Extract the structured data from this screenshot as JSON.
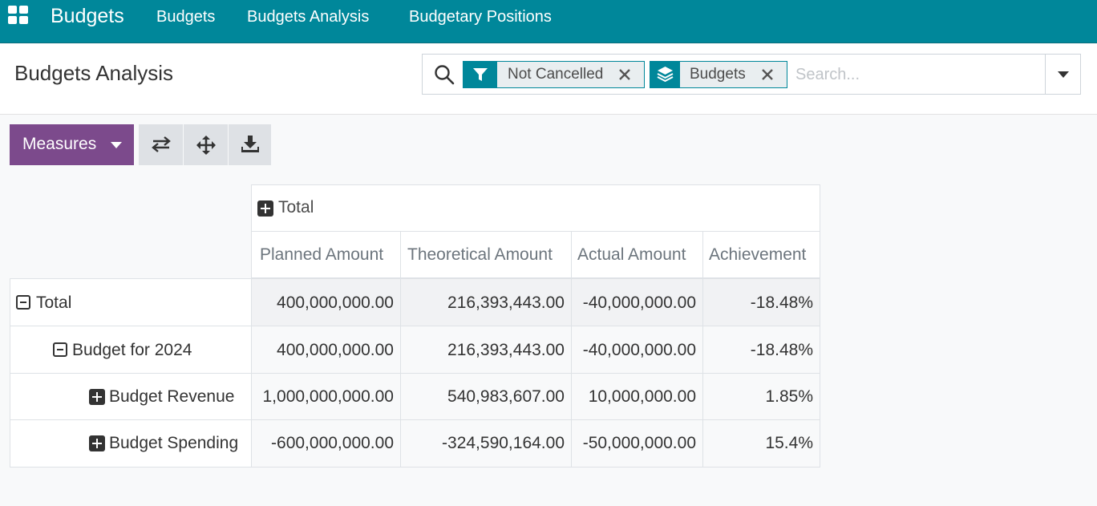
{
  "navbar": {
    "brand": "Budgets",
    "menu": [
      "Budgets",
      "Budgets Analysis",
      "Budgetary Positions"
    ]
  },
  "control_panel": {
    "title": "Budgets Analysis",
    "search": {
      "facets": [
        {
          "icon": "filter-icon",
          "label": "Not Cancelled"
        },
        {
          "icon": "layers-icon",
          "label": "Budgets"
        }
      ],
      "placeholder": "Search..."
    }
  },
  "toolbar": {
    "measures_label": "Measures",
    "buttons": [
      "flip-axis-icon",
      "expand-all-icon",
      "download-icon"
    ]
  },
  "pivot": {
    "column_group": "Total",
    "measures": [
      "Planned Amount",
      "Theoretical Amount",
      "Actual Amount",
      "Achievement"
    ],
    "rows": [
      {
        "label": "Total",
        "expander": "minus",
        "values": [
          "400,000,000.00",
          "216,393,443.00",
          "-40,000,000.00",
          "-18.48%"
        ]
      },
      {
        "label": "Budget for 2024",
        "expander": "minus",
        "values": [
          "400,000,000.00",
          "216,393,443.00",
          "-40,000,000.00",
          "-18.48%"
        ]
      },
      {
        "label": "Budget Revenue",
        "expander": "plus",
        "values": [
          "1,000,000,000.00",
          "540,983,607.00",
          "10,000,000.00",
          "1.85%"
        ]
      },
      {
        "label": "Budget Spending",
        "expander": "plus",
        "values": [
          "-600,000,000.00",
          "-324,590,164.00",
          "-50,000,000.00",
          "15.4%"
        ]
      }
    ]
  },
  "colors": {
    "navbar": "#00879a",
    "primary_button": "#7c4a8c"
  }
}
